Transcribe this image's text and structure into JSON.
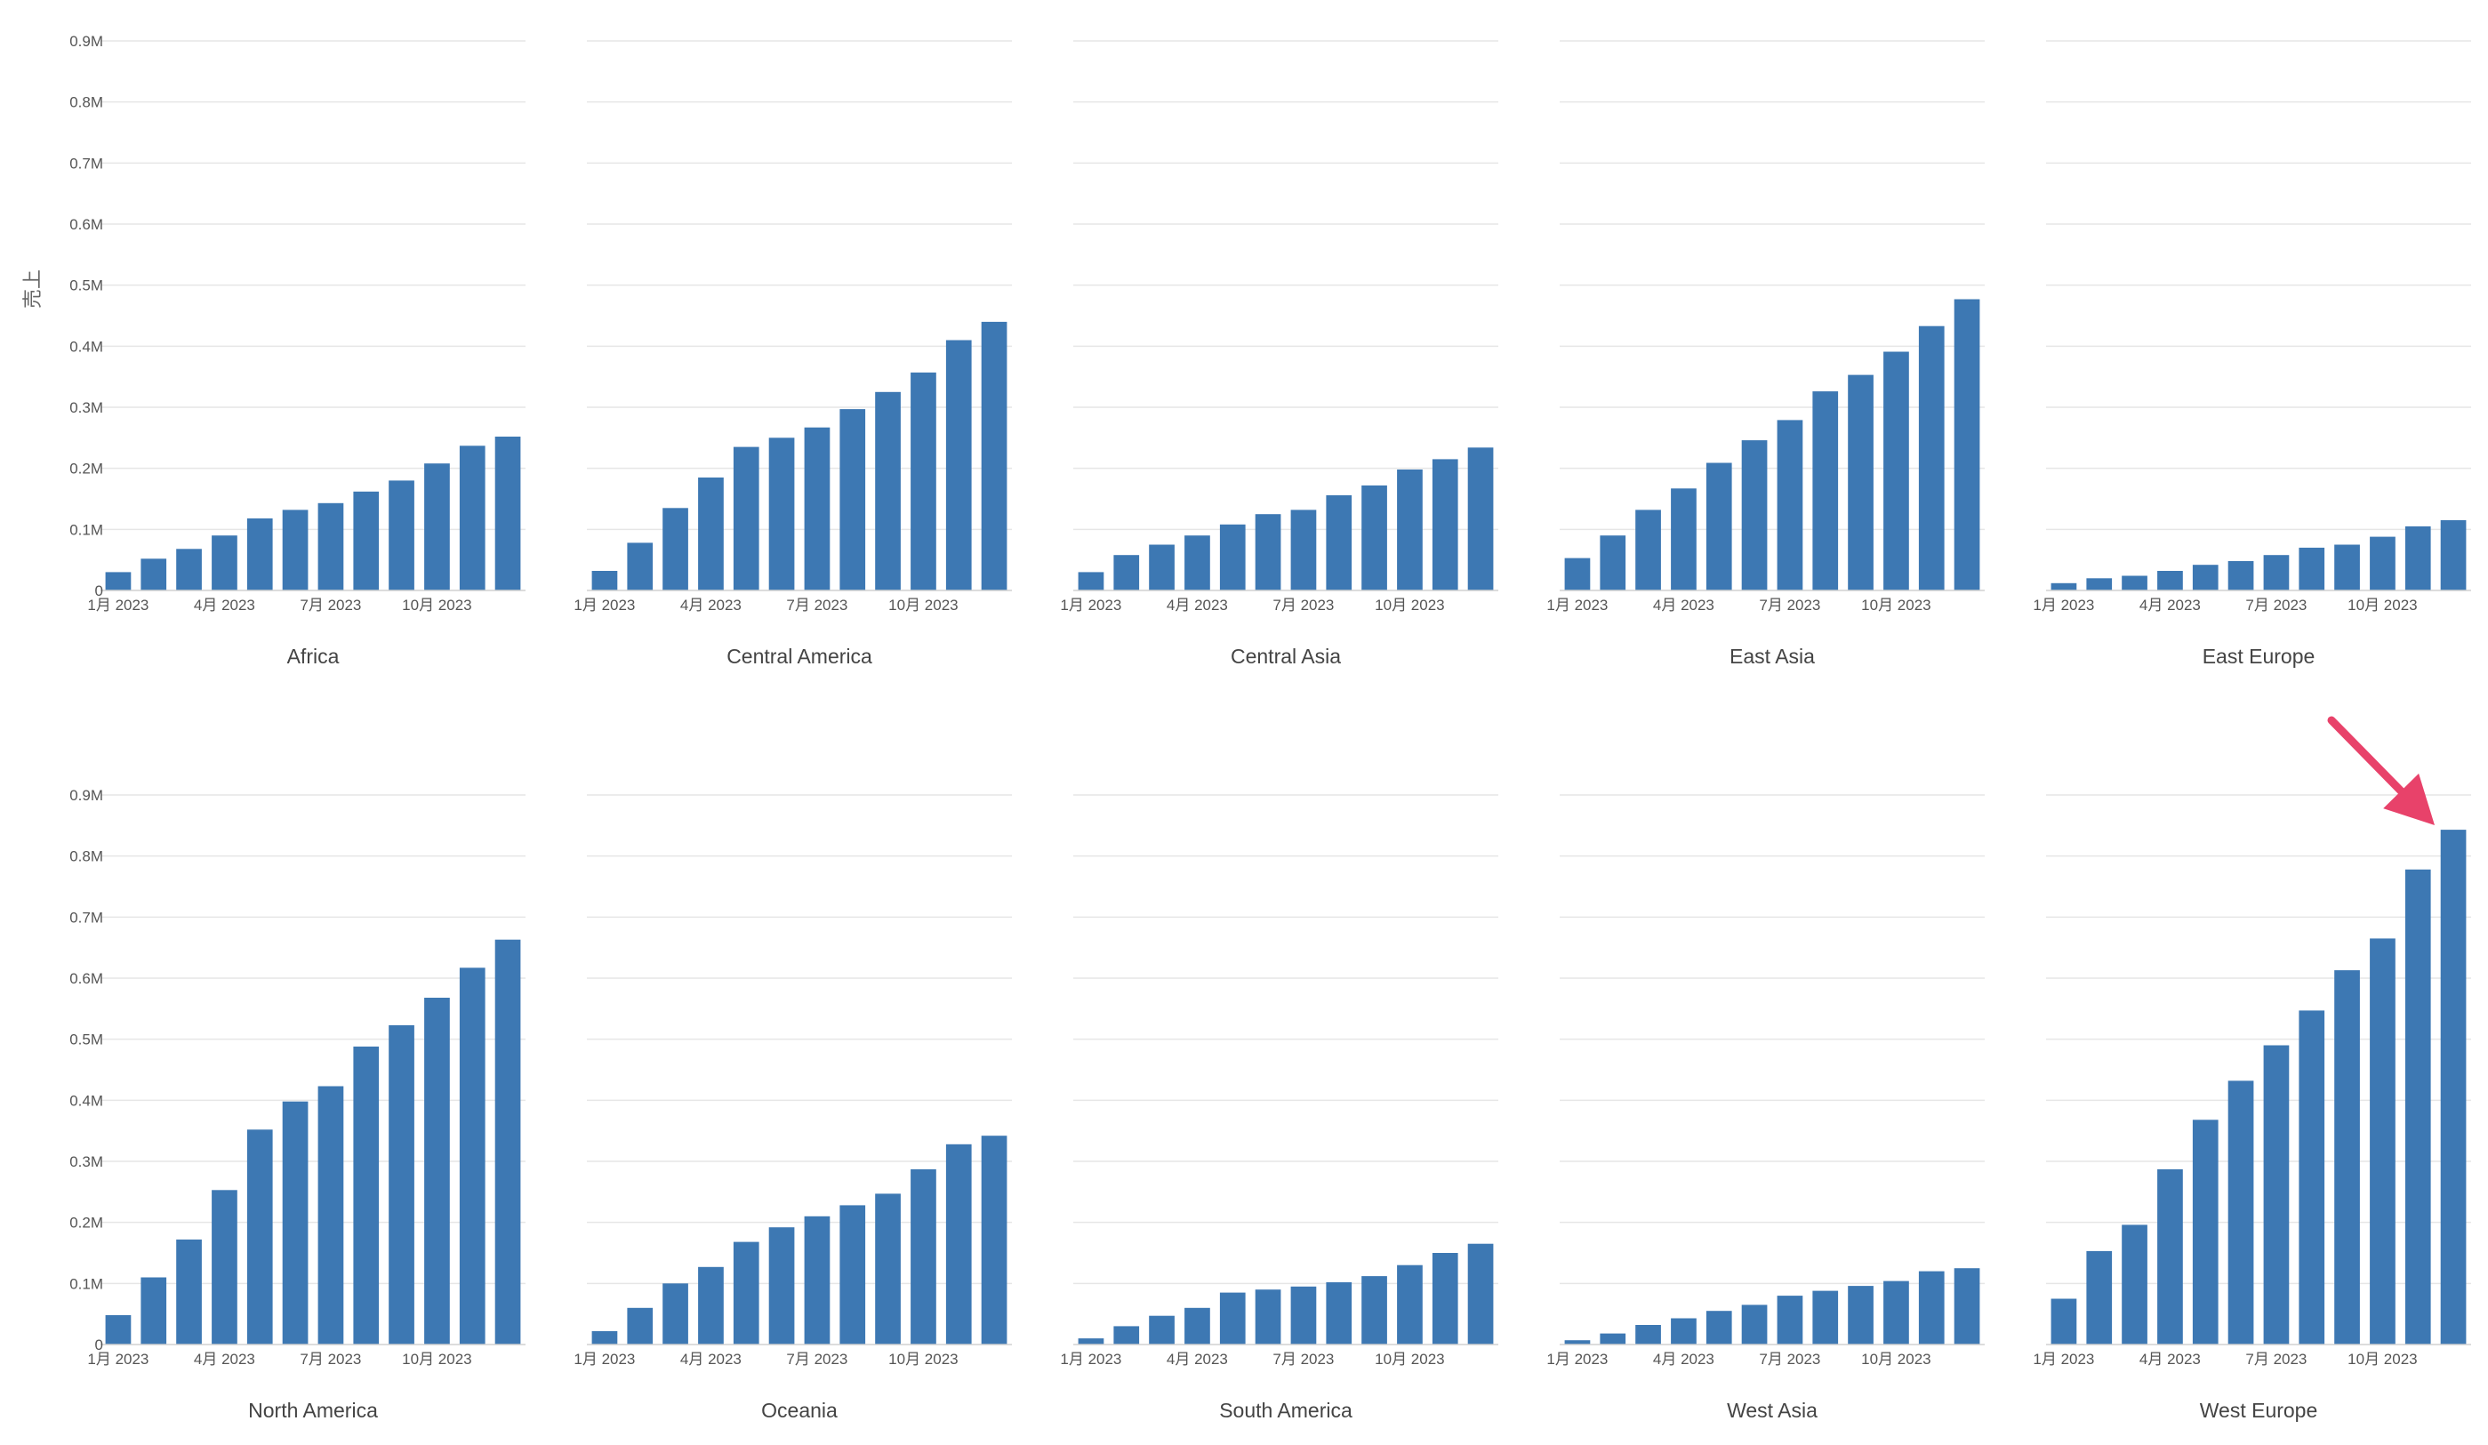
{
  "ylabel": "売上",
  "y_ticks": [
    "0",
    "0.1M",
    "0.2M",
    "0.3M",
    "0.4M",
    "0.5M",
    "0.6M",
    "0.7M",
    "0.8M",
    "0.9M"
  ],
  "x_ticks": [
    {
      "month_index": 0,
      "label": "1月 2023"
    },
    {
      "month_index": 3,
      "label": "4月 2023"
    },
    {
      "month_index": 6,
      "label": "7月 2023"
    },
    {
      "month_index": 9,
      "label": "10月 2023"
    }
  ],
  "colors": {
    "bar": "#3d78b3",
    "grid": "#e6e6e6",
    "text": "#555555",
    "arrow": "#e8426a"
  },
  "annotation": {
    "type": "arrow",
    "points_to": "West Europe, 12月 2023 bar"
  },
  "chart_data": {
    "type": "bar",
    "layout": "small-multiples",
    "x": [
      "1月 2023",
      "2月 2023",
      "3月 2023",
      "4月 2023",
      "5月 2023",
      "6月 2023",
      "7月 2023",
      "8月 2023",
      "9月 2023",
      "10月 2023",
      "11月 2023",
      "12月 2023"
    ],
    "ylim": [
      0,
      900000
    ],
    "ylabel": "売上",
    "grid": true,
    "legend": "none",
    "panels": [
      {
        "name": "Africa",
        "values": [
          30000,
          52000,
          68000,
          90000,
          118000,
          132000,
          143000,
          162000,
          180000,
          208000,
          237000,
          252000
        ]
      },
      {
        "name": "Central America",
        "values": [
          32000,
          78000,
          135000,
          185000,
          235000,
          250000,
          267000,
          297000,
          325000,
          357000,
          410000,
          440000
        ]
      },
      {
        "name": "Central Asia",
        "values": [
          30000,
          58000,
          75000,
          90000,
          108000,
          125000,
          132000,
          156000,
          172000,
          198000,
          215000,
          234000
        ]
      },
      {
        "name": "East Asia",
        "values": [
          53000,
          90000,
          132000,
          167000,
          209000,
          246000,
          279000,
          326000,
          353000,
          391000,
          433000,
          477000
        ]
      },
      {
        "name": "East Europe",
        "values": [
          12000,
          20000,
          24000,
          32000,
          42000,
          48000,
          58000,
          70000,
          75000,
          88000,
          105000,
          115000
        ]
      },
      {
        "name": "North America",
        "values": [
          48000,
          110000,
          172000,
          253000,
          352000,
          398000,
          423000,
          488000,
          523000,
          568000,
          617000,
          663000
        ]
      },
      {
        "name": "Oceania",
        "values": [
          22000,
          60000,
          100000,
          127000,
          168000,
          192000,
          210000,
          228000,
          247000,
          287000,
          328000,
          342000
        ]
      },
      {
        "name": "South America",
        "values": [
          10000,
          30000,
          47000,
          60000,
          85000,
          90000,
          95000,
          102000,
          112000,
          130000,
          150000,
          165000
        ]
      },
      {
        "name": "West Asia",
        "values": [
          7000,
          18000,
          32000,
          43000,
          55000,
          65000,
          80000,
          88000,
          96000,
          104000,
          120000,
          125000
        ]
      },
      {
        "name": "West Europe",
        "values": [
          75000,
          153000,
          196000,
          287000,
          368000,
          432000,
          490000,
          547000,
          613000,
          665000,
          778000,
          843000
        ]
      }
    ]
  }
}
